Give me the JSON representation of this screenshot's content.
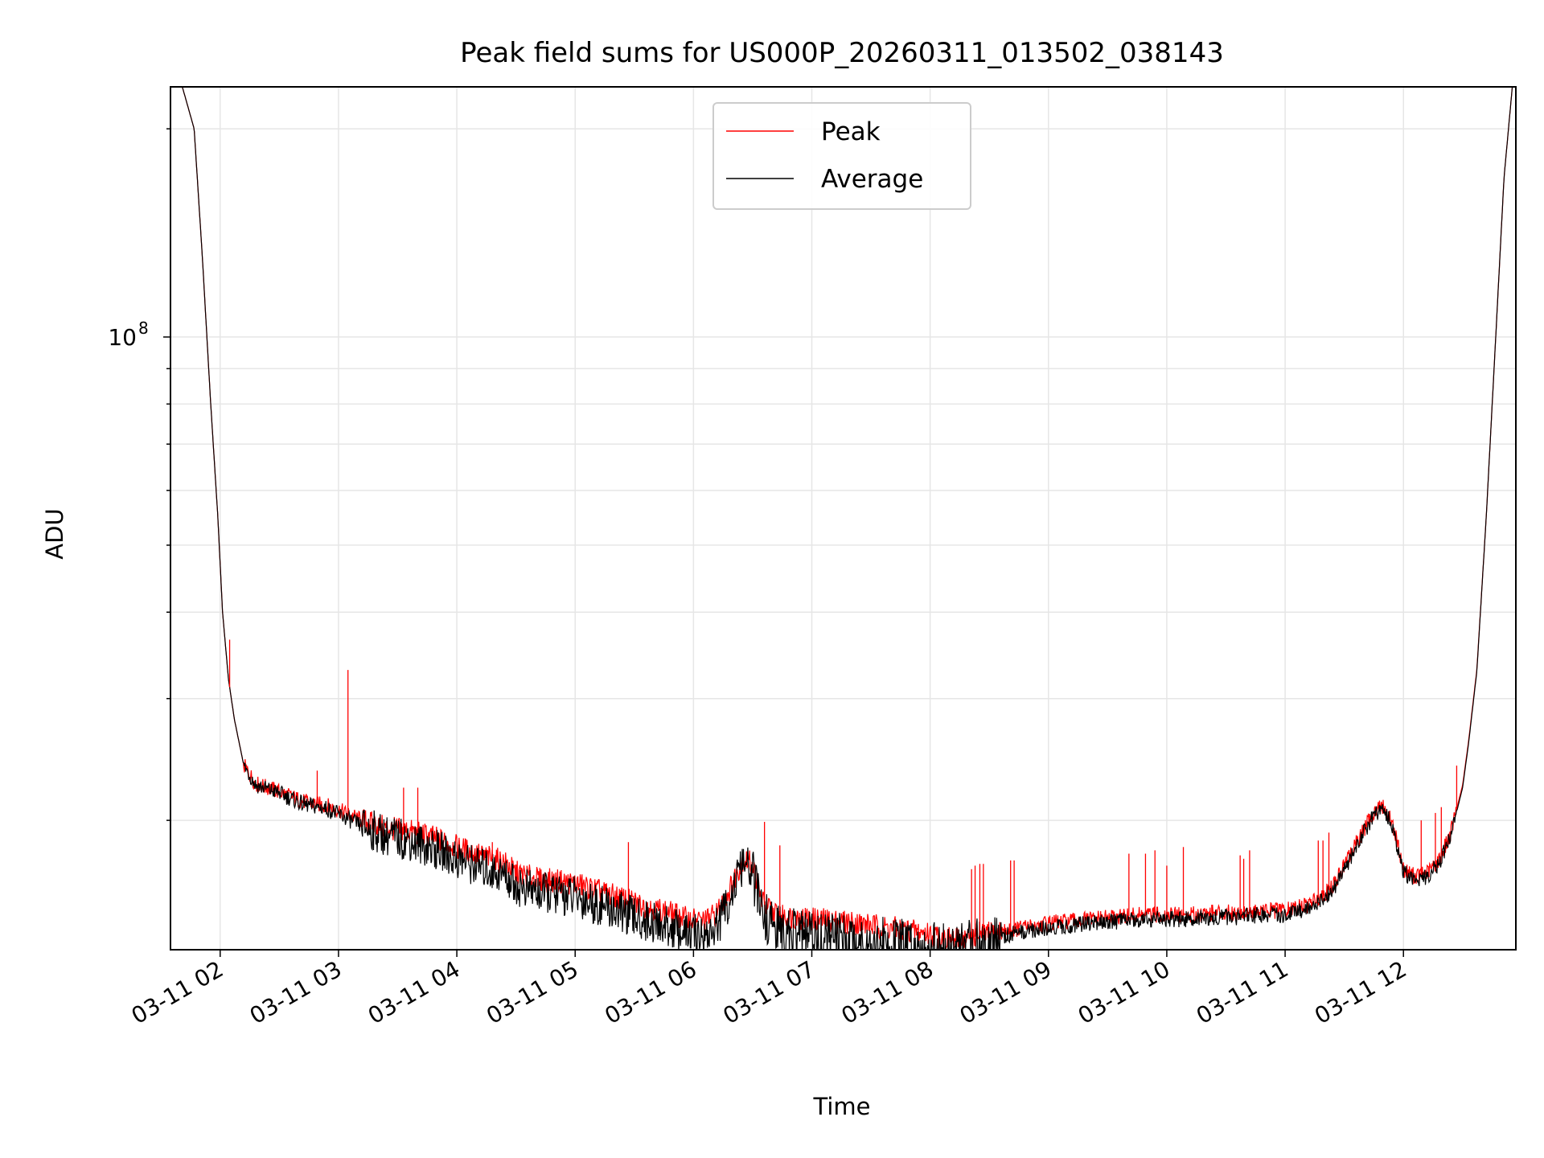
{
  "chart_data": {
    "type": "line",
    "title": "Peak field sums for US000P_20260311_013502_038143",
    "xlabel": "Time",
    "ylabel": "ADU",
    "yscale": "log",
    "xlim_hours": [
      1.58,
      12.95
    ],
    "ylim": [
      13000000,
      230000000
    ],
    "x_ticks": [
      {
        "hour": 2,
        "label": "03-11 02"
      },
      {
        "hour": 3,
        "label": "03-11 03"
      },
      {
        "hour": 4,
        "label": "03-11 04"
      },
      {
        "hour": 5,
        "label": "03-11 05"
      },
      {
        "hour": 6,
        "label": "03-11 06"
      },
      {
        "hour": 7,
        "label": "03-11 07"
      },
      {
        "hour": 8,
        "label": "03-11 08"
      },
      {
        "hour": 9,
        "label": "03-11 09"
      },
      {
        "hour": 10,
        "label": "03-11 10"
      },
      {
        "hour": 11,
        "label": "03-11 11"
      },
      {
        "hour": 12,
        "label": "03-11 12"
      }
    ],
    "y_major_tick": {
      "value": 100000000,
      "base": "10",
      "exp": "8"
    },
    "grid": true,
    "legend_position": "top-center",
    "series": [
      {
        "name": "Peak",
        "color": "#ff0000",
        "x": [
          1.58,
          1.68,
          1.78,
          1.85,
          1.92,
          1.98,
          2.02,
          2.07,
          2.12,
          2.2,
          2.3,
          2.5,
          2.7,
          2.9,
          3.0,
          3.2,
          3.4,
          3.6,
          3.8,
          4.0,
          4.2,
          4.4,
          4.5,
          4.7,
          4.9,
          5.0,
          5.2,
          5.4,
          5.6,
          5.8,
          5.95,
          6.1,
          6.2,
          6.3,
          6.42,
          6.5,
          6.55,
          6.6,
          6.68,
          6.75,
          6.85,
          7.0,
          7.2,
          7.4,
          7.6,
          7.8,
          8.0,
          8.2,
          8.3,
          8.4,
          8.6,
          8.8,
          9.0,
          9.2,
          9.4,
          9.6,
          9.8,
          10.0,
          10.2,
          10.4,
          10.6,
          10.8,
          11.0,
          11.2,
          11.4,
          11.6,
          11.75,
          11.82,
          11.9,
          11.95,
          12.0,
          12.1,
          12.2,
          12.3,
          12.4,
          12.5,
          12.55,
          12.62,
          12.7,
          12.78,
          12.85,
          12.92,
          12.95
        ],
        "y": [
          230000000,
          230000000,
          200000000,
          130000000,
          80000000,
          55000000,
          40000000,
          32000000,
          28000000,
          24000000,
          22600000,
          22000000,
          21300000,
          21000000,
          20700000,
          20000000,
          19500000,
          19300000,
          18900000,
          18300000,
          17800000,
          17400000,
          16800000,
          16400000,
          16300000,
          16200000,
          15800000,
          15400000,
          15000000,
          14700000,
          14400000,
          14300000,
          14700000,
          15800000,
          17600000,
          17300000,
          15900000,
          15100000,
          14700000,
          14500000,
          14500000,
          14400000,
          14300000,
          14200000,
          14000000,
          13900000,
          13700000,
          13400000,
          13500000,
          13600000,
          13800000,
          14000000,
          14200000,
          14300000,
          14400000,
          14500000,
          14600000,
          14600000,
          14600000,
          14700000,
          14700000,
          14800000,
          14800000,
          15100000,
          16000000,
          18500000,
          20600000,
          21000000,
          20000000,
          18500000,
          17000000,
          16600000,
          16800000,
          17500000,
          19200000,
          22500000,
          26000000,
          33000000,
          55000000,
          100000000,
          170000000,
          230000000,
          230000000
        ]
      },
      {
        "name": "Average",
        "color": "#000000",
        "x": [
          1.58,
          1.68,
          1.78,
          1.85,
          1.92,
          1.98,
          2.02,
          2.07,
          2.12,
          2.2,
          2.3,
          2.5,
          2.7,
          2.9,
          3.0,
          3.2,
          3.4,
          3.6,
          3.8,
          4.0,
          4.2,
          4.4,
          4.5,
          4.7,
          4.9,
          5.0,
          5.2,
          5.4,
          5.6,
          5.8,
          5.95,
          6.1,
          6.2,
          6.3,
          6.42,
          6.5,
          6.55,
          6.6,
          6.68,
          6.75,
          6.85,
          7.0,
          7.2,
          7.4,
          7.6,
          7.8,
          8.0,
          8.2,
          8.3,
          8.4,
          8.6,
          8.8,
          9.0,
          9.2,
          9.4,
          9.6,
          9.8,
          10.0,
          10.2,
          10.4,
          10.6,
          10.8,
          11.0,
          11.2,
          11.4,
          11.6,
          11.75,
          11.82,
          11.9,
          11.95,
          12.0,
          12.1,
          12.2,
          12.3,
          12.4,
          12.5,
          12.55,
          12.62,
          12.7,
          12.78,
          12.85,
          12.92,
          12.95
        ],
        "y": [
          230000000,
          230000000,
          200000000,
          130000000,
          80000000,
          55000000,
          40000000,
          32000000,
          28000000,
          24000000,
          22500000,
          21900000,
          21100000,
          20800000,
          20400000,
          19600000,
          19000000,
          18700000,
          18200000,
          17600000,
          17100000,
          16700000,
          16100000,
          15700000,
          15600000,
          15500000,
          15100000,
          14700000,
          14300000,
          14000000,
          13700000,
          13600000,
          14000000,
          15300000,
          17300000,
          16800000,
          15300000,
          14500000,
          14000000,
          13800000,
          13700000,
          13600000,
          13500000,
          13400000,
          13300000,
          13200000,
          13100000,
          13000000,
          13100000,
          13300000,
          13600000,
          13800000,
          14000000,
          14100000,
          14200000,
          14300000,
          14400000,
          14400000,
          14400000,
          14500000,
          14500000,
          14600000,
          14600000,
          14900000,
          15800000,
          18300000,
          20400000,
          20800000,
          19800000,
          18300000,
          16800000,
          16400000,
          16600000,
          17300000,
          19000000,
          22300000,
          25800000,
          32800000,
          55000000,
          100000000,
          170000000,
          230000000,
          230000000
        ]
      }
    ],
    "spikes": [
      {
        "hour": 2.08,
        "value": 36500000
      },
      {
        "hour": 2.82,
        "value": 23600000
      },
      {
        "hour": 3.08,
        "value": 33000000
      },
      {
        "hour": 3.55,
        "value": 22300000
      },
      {
        "hour": 3.67,
        "value": 22300000
      },
      {
        "hour": 4.3,
        "value": 18600000
      },
      {
        "hour": 5.45,
        "value": 18600000
      },
      {
        "hour": 6.6,
        "value": 19900000
      },
      {
        "hour": 6.73,
        "value": 18400000
      },
      {
        "hour": 8.35,
        "value": 17000000
      },
      {
        "hour": 8.38,
        "value": 17200000
      },
      {
        "hour": 8.42,
        "value": 17300000
      },
      {
        "hour": 8.45,
        "value": 17300000
      },
      {
        "hour": 8.68,
        "value": 17500000
      },
      {
        "hour": 8.71,
        "value": 17500000
      },
      {
        "hour": 9.68,
        "value": 17900000
      },
      {
        "hour": 9.82,
        "value": 17900000
      },
      {
        "hour": 9.9,
        "value": 18100000
      },
      {
        "hour": 10.0,
        "value": 17200000
      },
      {
        "hour": 10.14,
        "value": 18300000
      },
      {
        "hour": 10.38,
        "value": 15100000
      },
      {
        "hour": 10.62,
        "value": 17800000
      },
      {
        "hour": 10.65,
        "value": 17600000
      },
      {
        "hour": 10.7,
        "value": 18100000
      },
      {
        "hour": 10.88,
        "value": 15100000
      },
      {
        "hour": 11.28,
        "value": 18700000
      },
      {
        "hour": 11.32,
        "value": 18700000
      },
      {
        "hour": 11.37,
        "value": 19200000
      },
      {
        "hour": 12.15,
        "value": 20000000
      },
      {
        "hour": 12.27,
        "value": 20500000
      },
      {
        "hour": 12.32,
        "value": 20900000
      },
      {
        "hour": 12.45,
        "value": 24000000
      }
    ]
  }
}
